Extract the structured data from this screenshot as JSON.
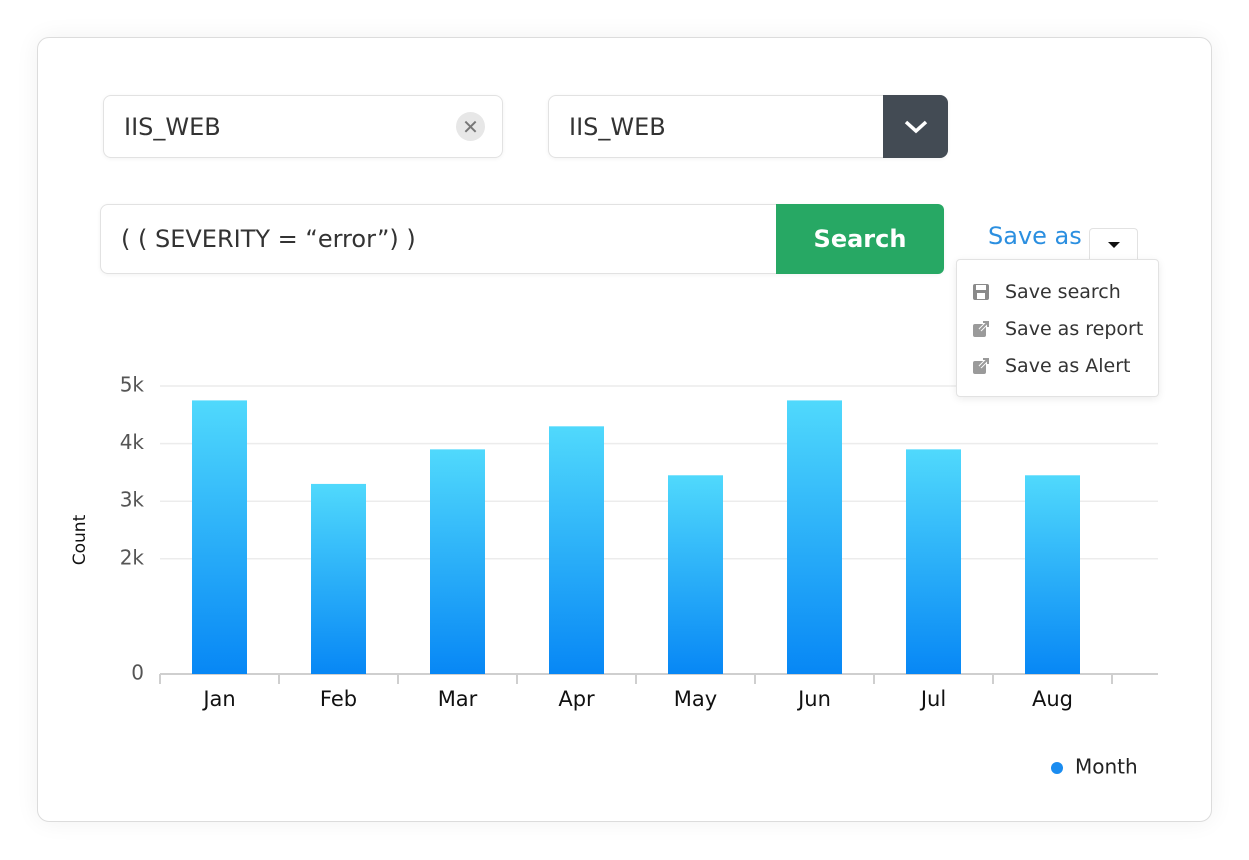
{
  "filters": {
    "source": "IIS_WEB",
    "selector": "IIS_WEB"
  },
  "query": {
    "text": "( ( SEVERITY = “error”) )",
    "button": "Search"
  },
  "save": {
    "label": "Save as",
    "menu": [
      "Save search",
      "Save as report",
      "Save as Alert"
    ]
  },
  "chart_data": {
    "type": "bar",
    "y_label": "Count",
    "categories": [
      "Jan",
      "Feb",
      "Mar",
      "Apr",
      "May",
      "Jun",
      "Jul",
      "Aug"
    ],
    "series": [
      {
        "name": "Month",
        "color": "#1a8cf0",
        "gradient": [
          "#50d9fc",
          "#0787f5"
        ],
        "values": [
          4750,
          3300,
          3900,
          4300,
          3450,
          4750,
          3900,
          3450
        ]
      }
    ],
    "ylim": [
      0,
      5000
    ],
    "yticks": [
      0,
      {
        "value": 2000,
        "label": "2k"
      },
      {
        "value": 3000,
        "label": "3k"
      },
      {
        "value": 4000,
        "label": "4k"
      },
      {
        "value": 5000,
        "label": "5k"
      }
    ],
    "grid": true,
    "legend": "bottom-right"
  }
}
